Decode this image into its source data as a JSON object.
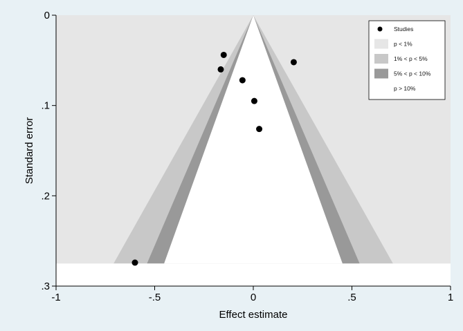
{
  "chart_data": {
    "type": "scatter",
    "subtype": "contour-enhanced funnel plot",
    "xlabel": "Effect estimate",
    "ylabel": "Standard error",
    "xlim": [
      -1,
      1
    ],
    "ylim": [
      0,
      0.3
    ],
    "y_reversed": true,
    "x_ticks": [
      {
        "value": -1,
        "label": "-1"
      },
      {
        "value": -0.5,
        "label": "-.5"
      },
      {
        "value": 0,
        "label": "0"
      },
      {
        "value": 0.5,
        "label": ".5"
      },
      {
        "value": 1,
        "label": "1"
      }
    ],
    "y_ticks": [
      {
        "value": 0,
        "label": "0"
      },
      {
        "value": 0.1,
        "label": ".1"
      },
      {
        "value": 0.2,
        "label": ".2"
      },
      {
        "value": 0.3,
        "label": ".3"
      }
    ],
    "funnel_max_se": 0.275,
    "contours": [
      {
        "label": "p < 1%",
        "z": 2.576,
        "color": "#e6e6e6"
      },
      {
        "label": "1% < p < 5%",
        "z": 1.96,
        "color": "#c8c8c8"
      },
      {
        "label": "5% < p < 10%",
        "z": 1.645,
        "color": "#999999"
      },
      {
        "label": "p > 10%",
        "z": 0,
        "color": "#ffffff"
      }
    ],
    "series": [
      {
        "name": "Studies",
        "color": "#000000",
        "points": [
          {
            "x": -0.15,
            "y": 0.044
          },
          {
            "x": -0.165,
            "y": 0.06
          },
          {
            "x": 0.205,
            "y": 0.052
          },
          {
            "x": -0.055,
            "y": 0.072
          },
          {
            "x": 0.005,
            "y": 0.095
          },
          {
            "x": 0.03,
            "y": 0.126
          },
          {
            "x": -0.6,
            "y": 0.274
          }
        ]
      }
    ],
    "legend": {
      "placement": "top-right",
      "entries": [
        {
          "label": "Studies",
          "kind": "marker"
        },
        {
          "label": "p < 1%",
          "kind": "swatch",
          "color": "#e6e6e6"
        },
        {
          "label": "1% < p < 5%",
          "kind": "swatch",
          "color": "#c8c8c8"
        },
        {
          "label": "5% < p < 10%",
          "kind": "swatch",
          "color": "#999999"
        },
        {
          "label": "p > 10%",
          "kind": "swatch",
          "color": "#ffffff"
        }
      ]
    }
  }
}
